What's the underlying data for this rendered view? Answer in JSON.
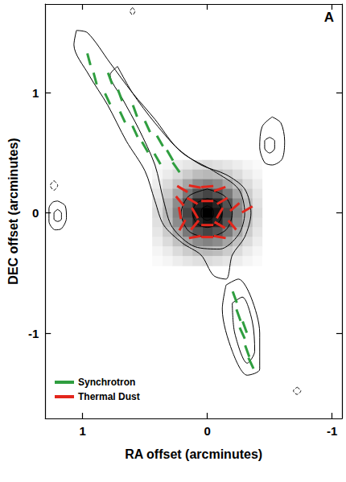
{
  "chart_data": {
    "type": "contour",
    "panel_label": "A",
    "xlabel": "RA offset (arcminutes)",
    "ylabel": "DEC offset (arcminutes)",
    "xlim": [
      1.3,
      -1.08
    ],
    "ylim": [
      -1.71,
      1.74
    ],
    "xticks": [
      1,
      0,
      -1
    ],
    "yticks": [
      -1,
      0,
      1
    ],
    "legend": "lower left",
    "dust_map": {
      "x": [
        -0.4,
        -0.32,
        -0.24,
        -0.16,
        -0.08,
        0,
        0.08,
        0.16,
        0.24,
        0.32,
        0.4
      ],
      "y": [
        0.4,
        0.32,
        0.24,
        0.16,
        0.08,
        0,
        -0.08,
        -0.16,
        -0.24,
        -0.32,
        -0.4
      ],
      "values": [
        [
          0.02,
          0.04,
          0.07,
          0.1,
          0.12,
          0.14,
          0.12,
          0.1,
          0.07,
          0.04,
          0.02
        ],
        [
          0.04,
          0.08,
          0.14,
          0.2,
          0.26,
          0.28,
          0.26,
          0.2,
          0.14,
          0.08,
          0.04
        ],
        [
          0.07,
          0.14,
          0.24,
          0.35,
          0.45,
          0.49,
          0.45,
          0.35,
          0.24,
          0.14,
          0.07
        ],
        [
          0.1,
          0.2,
          0.35,
          0.53,
          0.67,
          0.73,
          0.67,
          0.53,
          0.35,
          0.2,
          0.1
        ],
        [
          0.12,
          0.26,
          0.45,
          0.67,
          0.85,
          0.92,
          0.85,
          0.67,
          0.45,
          0.26,
          0.12
        ],
        [
          0.14,
          0.28,
          0.49,
          0.73,
          0.92,
          1.0,
          0.92,
          0.73,
          0.49,
          0.28,
          0.14
        ],
        [
          0.12,
          0.26,
          0.45,
          0.67,
          0.85,
          0.92,
          0.85,
          0.67,
          0.45,
          0.26,
          0.12
        ],
        [
          0.1,
          0.2,
          0.35,
          0.53,
          0.67,
          0.73,
          0.67,
          0.53,
          0.35,
          0.2,
          0.1
        ],
        [
          0.07,
          0.14,
          0.24,
          0.35,
          0.45,
          0.49,
          0.45,
          0.35,
          0.24,
          0.14,
          0.07
        ],
        [
          0.04,
          0.08,
          0.14,
          0.2,
          0.26,
          0.28,
          0.26,
          0.2,
          0.14,
          0.08,
          0.04
        ],
        [
          0.02,
          0.04,
          0.07,
          0.1,
          0.12,
          0.14,
          0.12,
          0.1,
          0.07,
          0.04,
          0.02
        ]
      ]
    },
    "contours": [
      {
        "points": [
          [
            1.05,
            1.52
          ],
          [
            0.96,
            1.5
          ],
          [
            0.78,
            1.25
          ],
          [
            0.6,
            1.0
          ],
          [
            0.42,
            0.78
          ],
          [
            0.25,
            0.55
          ],
          [
            0.05,
            0.4
          ],
          [
            -0.15,
            0.32
          ],
          [
            -0.3,
            0.2
          ],
          [
            -0.35,
            0.0
          ],
          [
            -0.3,
            -0.2
          ],
          [
            -0.2,
            -0.35
          ],
          [
            -0.15,
            -0.55
          ],
          [
            -0.05,
            -0.52
          ],
          [
            0.05,
            -0.35
          ],
          [
            0.2,
            -0.25
          ],
          [
            0.35,
            -0.1
          ],
          [
            0.42,
            0.1
          ],
          [
            0.5,
            0.35
          ],
          [
            0.65,
            0.6
          ],
          [
            0.8,
            0.9
          ],
          [
            0.95,
            1.15
          ],
          [
            1.07,
            1.4
          ],
          [
            1.05,
            1.52
          ]
        ]
      },
      {
        "points": [
          [
            0.72,
            1.22
          ],
          [
            0.6,
            1.0
          ],
          [
            0.42,
            0.75
          ],
          [
            0.2,
            0.5
          ],
          [
            -0.05,
            0.35
          ],
          [
            -0.25,
            0.2
          ],
          [
            -0.3,
            0.0
          ],
          [
            -0.25,
            -0.18
          ],
          [
            -0.1,
            -0.3
          ],
          [
            0.1,
            -0.28
          ],
          [
            0.28,
            -0.12
          ],
          [
            0.35,
            0.1
          ],
          [
            0.42,
            0.4
          ],
          [
            0.55,
            0.7
          ],
          [
            0.68,
            0.95
          ],
          [
            0.78,
            1.15
          ],
          [
            0.72,
            1.22
          ]
        ]
      },
      {
        "points": [
          [
            0,
            0.2
          ],
          [
            0.15,
            0.14
          ],
          [
            0.21,
            0
          ],
          [
            0.15,
            -0.15
          ],
          [
            0,
            -0.2
          ],
          [
            -0.15,
            -0.14
          ],
          [
            -0.2,
            0
          ],
          [
            -0.14,
            0.14
          ],
          [
            0,
            0.2
          ]
        ]
      },
      {
        "points": [
          [
            0,
            0.12
          ],
          [
            0.09,
            0.08
          ],
          [
            0.12,
            0
          ],
          [
            0.08,
            -0.09
          ],
          [
            0,
            -0.12
          ],
          [
            -0.09,
            -0.08
          ],
          [
            -0.12,
            0
          ],
          [
            -0.08,
            0.09
          ],
          [
            0,
            0.12
          ]
        ]
      },
      {
        "points": [
          [
            0,
            0.06
          ],
          [
            0.04,
            0.04
          ],
          [
            0.05,
            0
          ],
          [
            0.04,
            -0.04
          ],
          [
            0,
            -0.06
          ],
          [
            -0.04,
            -0.04
          ],
          [
            -0.05,
            0
          ],
          [
            -0.04,
            0.04
          ],
          [
            0,
            0.06
          ]
        ]
      },
      {
        "points": [
          [
            -0.15,
            -0.6
          ],
          [
            -0.12,
            -0.8
          ],
          [
            -0.2,
            -1.15
          ],
          [
            -0.32,
            -1.35
          ],
          [
            -0.42,
            -1.3
          ],
          [
            -0.42,
            -1.0
          ],
          [
            -0.35,
            -0.7
          ],
          [
            -0.25,
            -0.55
          ],
          [
            -0.15,
            -0.6
          ]
        ]
      },
      {
        "points": [
          [
            -0.2,
            -0.75
          ],
          [
            -0.22,
            -1.0
          ],
          [
            -0.32,
            -1.25
          ],
          [
            -0.38,
            -1.15
          ],
          [
            -0.36,
            -0.9
          ],
          [
            -0.28,
            -0.7
          ],
          [
            -0.2,
            -0.75
          ]
        ]
      },
      {
        "points": [
          [
            -0.52,
            0.8
          ],
          [
            -0.44,
            0.72
          ],
          [
            -0.42,
            0.55
          ],
          [
            -0.46,
            0.42
          ],
          [
            -0.52,
            0.4
          ],
          [
            -0.6,
            0.45
          ],
          [
            -0.62,
            0.6
          ],
          [
            -0.59,
            0.75
          ],
          [
            -0.52,
            0.8
          ]
        ]
      },
      {
        "points": [
          [
            -0.5,
            0.63
          ],
          [
            -0.46,
            0.6
          ],
          [
            -0.46,
            0.54
          ],
          [
            -0.5,
            0.5
          ],
          [
            -0.54,
            0.54
          ],
          [
            -0.54,
            0.6
          ],
          [
            -0.5,
            0.63
          ]
        ]
      },
      {
        "points": [
          [
            1.2,
            0.1
          ],
          [
            1.14,
            0.06
          ],
          [
            1.13,
            -0.04
          ],
          [
            1.17,
            -0.13
          ],
          [
            1.22,
            -0.14
          ],
          [
            1.27,
            -0.07
          ],
          [
            1.27,
            0.04
          ],
          [
            1.24,
            0.09
          ],
          [
            1.2,
            0.1
          ]
        ]
      },
      {
        "points": [
          [
            1.2,
            0.03
          ],
          [
            1.17,
            0.0
          ],
          [
            1.17,
            -0.05
          ],
          [
            1.2,
            -0.07
          ],
          [
            1.23,
            -0.05
          ],
          [
            1.23,
            0.0
          ],
          [
            1.2,
            0.03
          ]
        ]
      },
      {
        "points": [
          [
            0.6,
            1.71
          ],
          [
            0.58,
            1.68
          ],
          [
            0.6,
            1.65
          ],
          [
            0.62,
            1.68
          ],
          [
            0.6,
            1.71
          ]
        ],
        "line_style": "dashed"
      },
      {
        "points": [
          [
            1.23,
            0.27
          ],
          [
            1.2,
            0.23
          ],
          [
            1.23,
            0.19
          ],
          [
            1.26,
            0.23
          ],
          [
            1.23,
            0.27
          ]
        ],
        "line_style": "dashed"
      },
      {
        "points": [
          [
            -0.72,
            -1.45
          ],
          [
            -0.75,
            -1.48
          ],
          [
            -0.72,
            -1.51
          ],
          [
            -0.69,
            -1.48
          ],
          [
            -0.72,
            -1.45
          ]
        ],
        "line_style": "dashed"
      }
    ],
    "series": [
      {
        "name": "Synchrotron",
        "color": "#2f9e3f",
        "x": [
          0.95,
          0.9,
          0.78,
          0.8,
          0.7,
          0.68,
          0.58,
          0.58,
          0.48,
          0.5,
          0.38,
          0.4,
          0.3,
          0.25,
          -0.22,
          -0.25,
          -0.28,
          -0.32,
          -0.3,
          -0.35
        ],
        "y": [
          1.28,
          1.12,
          1.12,
          0.95,
          0.98,
          0.8,
          0.85,
          0.68,
          0.72,
          0.55,
          0.6,
          0.45,
          0.48,
          0.38,
          -0.7,
          -0.85,
          -1.0,
          -1.15,
          -0.95,
          -1.25
        ],
        "angle": [
          15,
          15,
          20,
          25,
          20,
          25,
          20,
          25,
          25,
          30,
          30,
          30,
          30,
          35,
          20,
          20,
          25,
          20,
          20,
          25
        ]
      },
      {
        "name": "Thermal Dust",
        "color": "#e3261c",
        "x": [
          0.2,
          0.1,
          0,
          -0.1,
          0.22,
          0.12,
          0,
          -0.12,
          -0.22,
          0.22,
          0.1,
          -0.1,
          0.2,
          0.1,
          0,
          -0.1,
          -0.2,
          0.1,
          0,
          -0.1,
          -0.32
        ],
        "y": [
          0.2,
          0.22,
          0.22,
          0.2,
          0.1,
          0.1,
          0.1,
          0.1,
          0.05,
          0,
          0,
          0,
          -0.1,
          -0.1,
          -0.1,
          -0.1,
          -0.1,
          -0.2,
          -0.2,
          -0.2,
          0.03
        ],
        "angle": [
          60,
          80,
          95,
          110,
          40,
          60,
          90,
          120,
          130,
          10,
          30,
          150,
          150,
          140,
          90,
          60,
          40,
          100,
          90,
          80,
          120
        ]
      }
    ]
  }
}
